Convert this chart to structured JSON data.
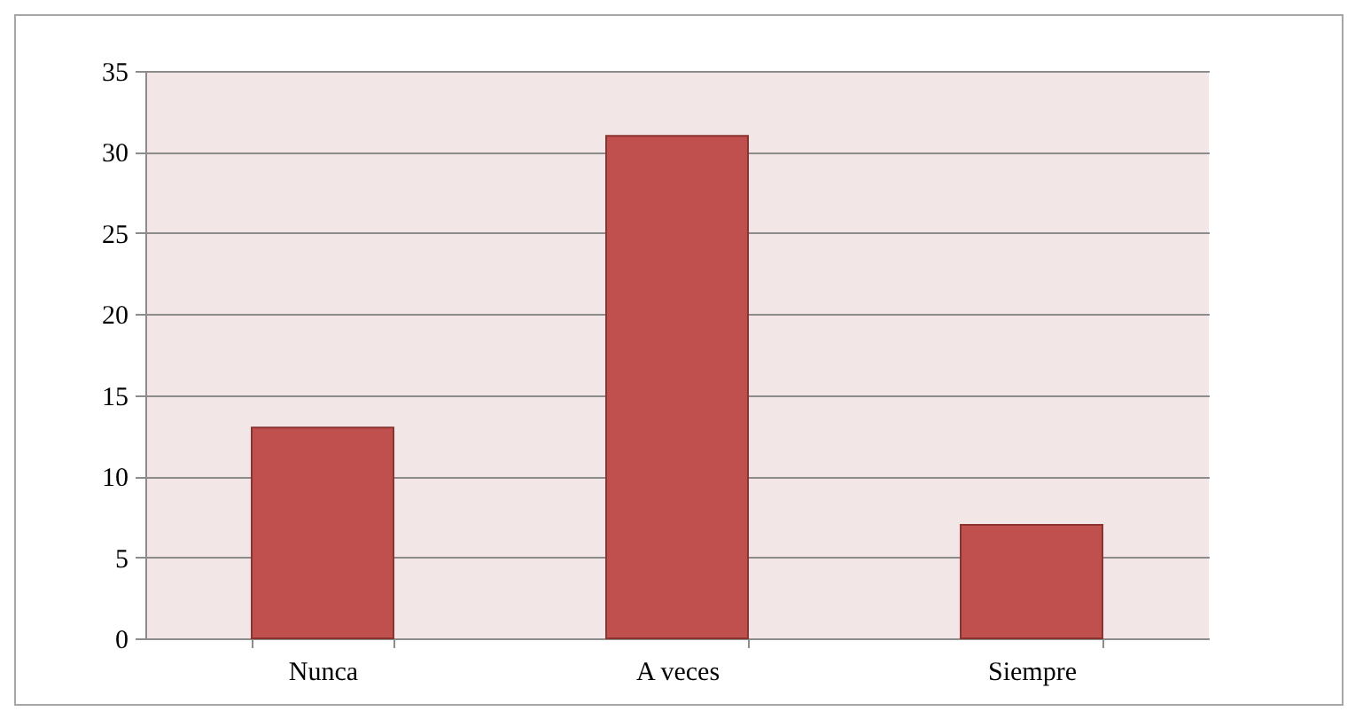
{
  "chart_data": {
    "type": "bar",
    "categories": [
      "Nunca",
      "A veces",
      "Siempre"
    ],
    "values": [
      13,
      31,
      7
    ],
    "color": "#c0504d",
    "ylim": [
      0,
      35
    ],
    "yticks": [
      0,
      5,
      10,
      15,
      20,
      25,
      30,
      35
    ],
    "grid": "y"
  }
}
